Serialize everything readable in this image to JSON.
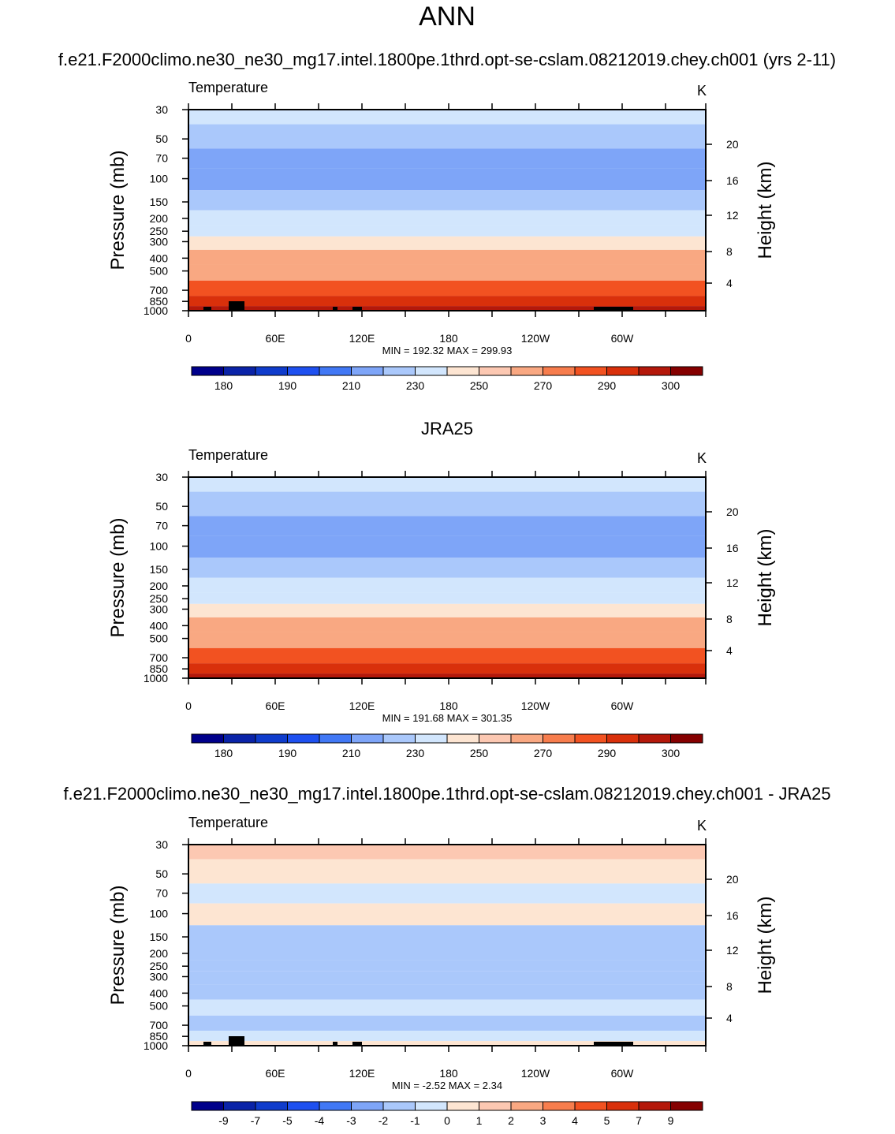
{
  "figure": {
    "title": "ANN"
  },
  "chart_data": [
    {
      "type": "heatmap",
      "panel_title": "",
      "field_label": "Temperature",
      "units": "K",
      "ylabel": "Pressure (mb)",
      "ylabel_right": "Height (km)",
      "x_ticks": [
        "0",
        "60E",
        "120E",
        "180",
        "120W",
        "60W"
      ],
      "y_ticks": [
        "30",
        "50",
        "70",
        "100",
        "150",
        "200",
        "250",
        "300",
        "400",
        "500",
        "700",
        "850",
        "1000"
      ],
      "y_ticks_right": [
        "20",
        "16",
        "12",
        "8",
        "4"
      ],
      "ylim": [
        1000,
        30
      ],
      "stats": "MIN = 192.32  MAX = 299.93",
      "colorbar_labels": [
        "180",
        "190",
        "210",
        "230",
        "250",
        "270",
        "290",
        "300"
      ],
      "levels": [
        {
          "p": 30,
          "value": 222
        },
        {
          "p": 50,
          "value": 213
        },
        {
          "p": 70,
          "value": 205
        },
        {
          "p": 100,
          "value": 203
        },
        {
          "p": 150,
          "value": 212
        },
        {
          "p": 200,
          "value": 220
        },
        {
          "p": 250,
          "value": 228
        },
        {
          "p": 300,
          "value": 236
        },
        {
          "p": 400,
          "value": 250
        },
        {
          "p": 500,
          "value": 258
        },
        {
          "p": 700,
          "value": 273
        },
        {
          "p": 850,
          "value": 283
        },
        {
          "p": 1000,
          "value": 292
        }
      ]
    },
    {
      "type": "heatmap",
      "panel_title": "JRA25",
      "field_label": "Temperature",
      "units": "K",
      "ylabel": "Pressure (mb)",
      "ylabel_right": "Height (km)",
      "x_ticks": [
        "0",
        "60E",
        "120E",
        "180",
        "120W",
        "60W"
      ],
      "y_ticks": [
        "30",
        "50",
        "70",
        "100",
        "150",
        "200",
        "250",
        "300",
        "400",
        "500",
        "700",
        "850",
        "1000"
      ],
      "y_ticks_right": [
        "20",
        "16",
        "12",
        "8",
        "4"
      ],
      "ylim": [
        1000,
        30
      ],
      "stats": "MIN = 191.68  MAX = 301.35",
      "colorbar_labels": [
        "180",
        "190",
        "210",
        "230",
        "250",
        "270",
        "290",
        "300"
      ],
      "levels": [
        {
          "p": 30,
          "value": 221
        },
        {
          "p": 50,
          "value": 212
        },
        {
          "p": 70,
          "value": 205
        },
        {
          "p": 100,
          "value": 202
        },
        {
          "p": 150,
          "value": 213
        },
        {
          "p": 200,
          "value": 221
        },
        {
          "p": 250,
          "value": 229
        },
        {
          "p": 300,
          "value": 237
        },
        {
          "p": 400,
          "value": 251
        },
        {
          "p": 500,
          "value": 259
        },
        {
          "p": 700,
          "value": 274
        },
        {
          "p": 850,
          "value": 284
        },
        {
          "p": 1000,
          "value": 293
        }
      ]
    },
    {
      "type": "heatmap",
      "panel_title": "f.e21.F2000climo.ne30_ne30_mg17.intel.1800pe.1thrd.opt-se-cslam.08212019.chey.ch001 - JRA25",
      "field_label": "Temperature",
      "units": "K",
      "ylabel": "Pressure (mb)",
      "ylabel_right": "Height (km)",
      "x_ticks": [
        "0",
        "60E",
        "120E",
        "180",
        "120W",
        "60W"
      ],
      "y_ticks": [
        "30",
        "50",
        "70",
        "100",
        "150",
        "200",
        "250",
        "300",
        "400",
        "500",
        "700",
        "850",
        "1000"
      ],
      "y_ticks_right": [
        "20",
        "16",
        "12",
        "8",
        "4"
      ],
      "ylim": [
        1000,
        30
      ],
      "stats": "MIN =  -2.52  MAX =   2.34",
      "colorbar_labels": [
        "-9",
        "-7",
        "-5",
        "-4",
        "-3",
        "-2",
        "-1",
        "0",
        "1",
        "2",
        "3",
        "4",
        "5",
        "7",
        "9"
      ],
      "levels": [
        {
          "p": 30,
          "value": 1.2
        },
        {
          "p": 50,
          "value": 0.4
        },
        {
          "p": 70,
          "value": -0.6
        },
        {
          "p": 100,
          "value": 0.5
        },
        {
          "p": 150,
          "value": -1.3
        },
        {
          "p": 200,
          "value": -1.5
        },
        {
          "p": 250,
          "value": -1.6
        },
        {
          "p": 300,
          "value": -1.8
        },
        {
          "p": 400,
          "value": -1.4
        },
        {
          "p": 500,
          "value": -0.8
        },
        {
          "p": 700,
          "value": -1.2
        },
        {
          "p": 850,
          "value": -0.5
        },
        {
          "p": 1000,
          "value": 0.3
        }
      ]
    }
  ],
  "panel1_title": "f.e21.F2000climo.ne30_ne30_mg17.intel.1800pe.1thrd.opt-se-cslam.08212019.chey.ch001 (yrs 2-11)",
  "colors": {
    "temp_palette": [
      "#00008b",
      "#0a23a8",
      "#0f3ccc",
      "#1e50f0",
      "#4178f5",
      "#7ea5f8",
      "#aac8fb",
      "#d2e6fd",
      "#fde5d2",
      "#fcc8b2",
      "#f9a882",
      "#f77d4d",
      "#f25221",
      "#d9300b",
      "#b4180a",
      "#850000"
    ],
    "diff_palette": [
      "#00008b",
      "#0a23a8",
      "#0f3ccc",
      "#1e50f0",
      "#4178f5",
      "#7ea5f8",
      "#aac8fb",
      "#d2e6fd",
      "#fde5d2",
      "#fcc8b2",
      "#f9a882",
      "#f77d4d",
      "#f25221",
      "#d9300b",
      "#b4180a",
      "#850000"
    ],
    "temp_bounds": [
      175,
      180,
      185,
      190,
      200,
      210,
      220,
      230,
      240,
      250,
      260,
      270,
      280,
      290,
      295,
      300
    ],
    "diff_bounds": [
      -9,
      -7,
      -5,
      -4,
      -3,
      -2,
      -1,
      0,
      1,
      2,
      3,
      4,
      5,
      7,
      9
    ]
  }
}
